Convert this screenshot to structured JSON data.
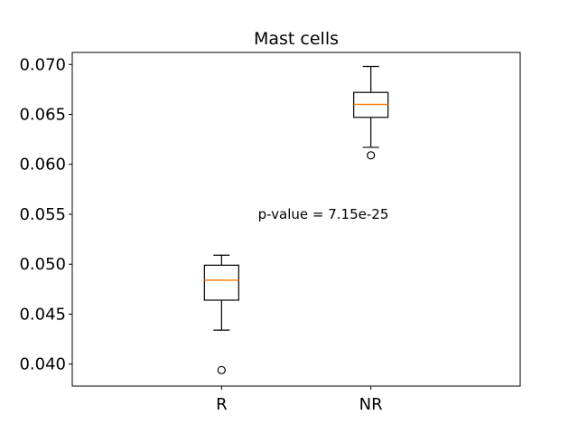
{
  "chart_data": {
    "type": "box",
    "title": "Mast cells",
    "xlabel": "",
    "ylabel": "",
    "ylim": [
      0.0378,
      0.0712
    ],
    "yticks": [
      0.04,
      0.045,
      0.05,
      0.055,
      0.06,
      0.065,
      0.07
    ],
    "ytick_labels": [
      "0.040",
      "0.045",
      "0.050",
      "0.055",
      "0.060",
      "0.065",
      "0.070"
    ],
    "categories": [
      "R",
      "NR"
    ],
    "boxes": [
      {
        "category": "R",
        "whisker_low": 0.0434,
        "q1": 0.0464,
        "median": 0.0484,
        "q3": 0.0499,
        "whisker_high": 0.0509,
        "outliers": [
          0.0394
        ]
      },
      {
        "category": "NR",
        "whisker_low": 0.0617,
        "q1": 0.0647,
        "median": 0.066,
        "q3": 0.0672,
        "whisker_high": 0.0698,
        "outliers": [
          0.0609
        ]
      }
    ],
    "annotation": "p-value = 7.15e-25",
    "grid": false,
    "colors": {
      "box": "#000000",
      "median": "#ff7f0e",
      "background": "#ffffff"
    }
  }
}
